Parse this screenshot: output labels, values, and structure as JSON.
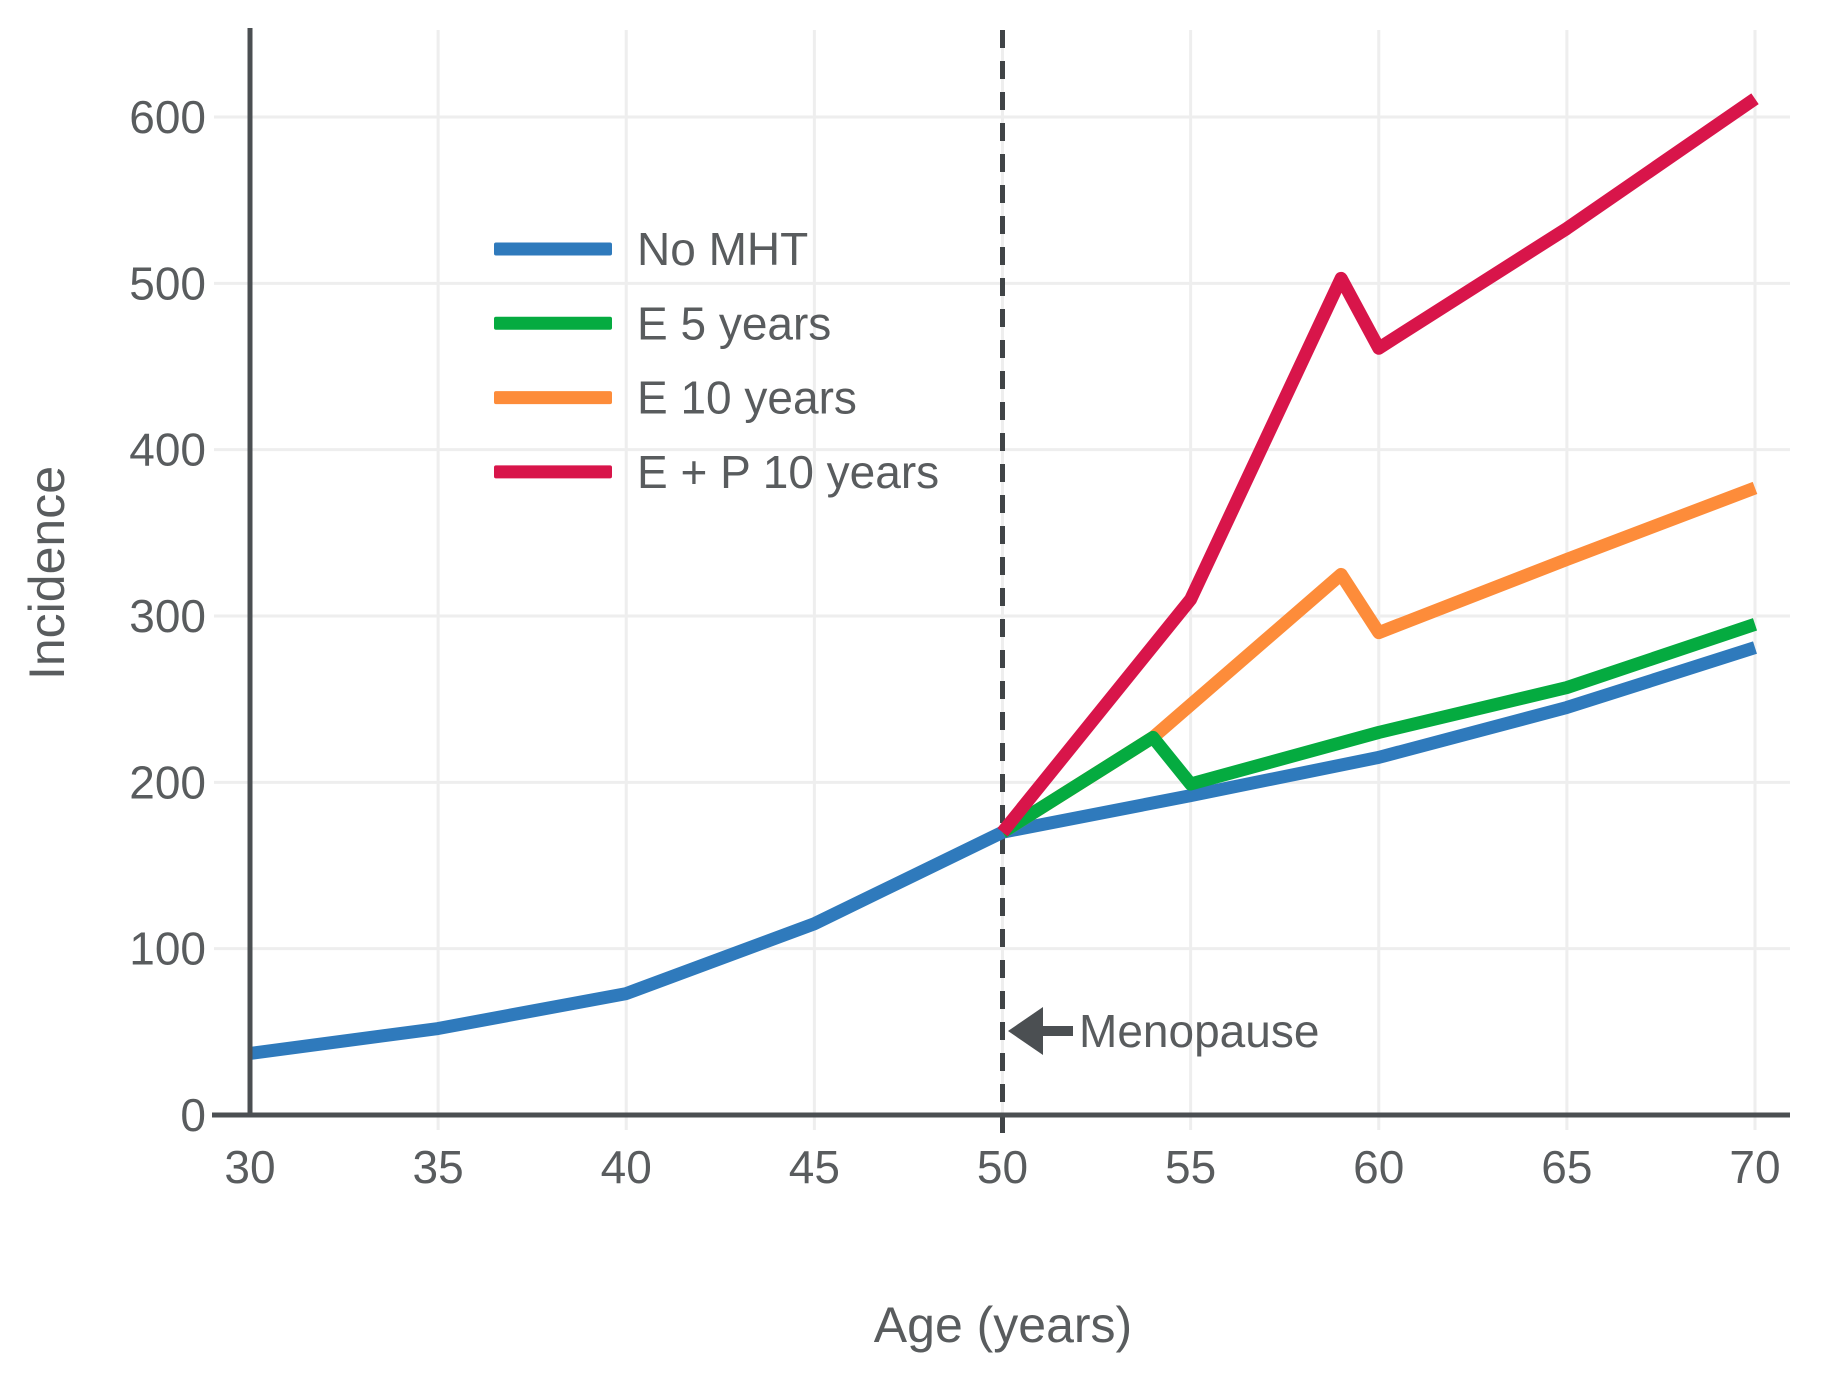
{
  "chart_data": {
    "type": "line",
    "title": "",
    "xlabel": "Age (years)",
    "ylabel": "Incidence",
    "x_ticks": [
      30,
      35,
      40,
      45,
      50,
      55,
      60,
      65,
      70
    ],
    "y_ticks": [
      0,
      100,
      200,
      300,
      400,
      500,
      600
    ],
    "xlim": [
      30,
      70
    ],
    "ylim": [
      0,
      652
    ],
    "grid": true,
    "legend_position": "upper-left-inside",
    "series": [
      {
        "name": "No MHT",
        "color": "#2f7abc",
        "x": [
          30,
          35,
          40,
          45,
          50,
          55,
          60,
          65,
          70
        ],
        "y": [
          37,
          52,
          73,
          115,
          170,
          192,
          215,
          245,
          281
        ]
      },
      {
        "name": "E 5 years",
        "color": "#05ab40",
        "x": [
          50,
          54,
          55,
          60,
          65,
          70
        ],
        "y": [
          170,
          227,
          199,
          230,
          257,
          295
        ]
      },
      {
        "name": "E 10 years",
        "color": "#fd8c3a",
        "x": [
          50,
          54,
          59,
          60,
          65,
          70
        ],
        "y": [
          170,
          227,
          325,
          290,
          334,
          377
        ]
      },
      {
        "name": "E + P 10 years",
        "color": "#d8154a",
        "x": [
          50,
          55,
          59,
          60,
          65,
          70
        ],
        "y": [
          170,
          310,
          503,
          461,
          533,
          611
        ]
      }
    ],
    "reference_line": {
      "axis": "x",
      "value": 50,
      "style": "dashed"
    },
    "annotation": {
      "text": "Menopause",
      "arrow_points_to_x": 50
    }
  },
  "style": {
    "axis_color": "#4b4f52",
    "dashed_line_color": "#404447",
    "grid_color": "#eeeeee",
    "text_color": "#595c5e",
    "background_color": "#ffffff"
  }
}
